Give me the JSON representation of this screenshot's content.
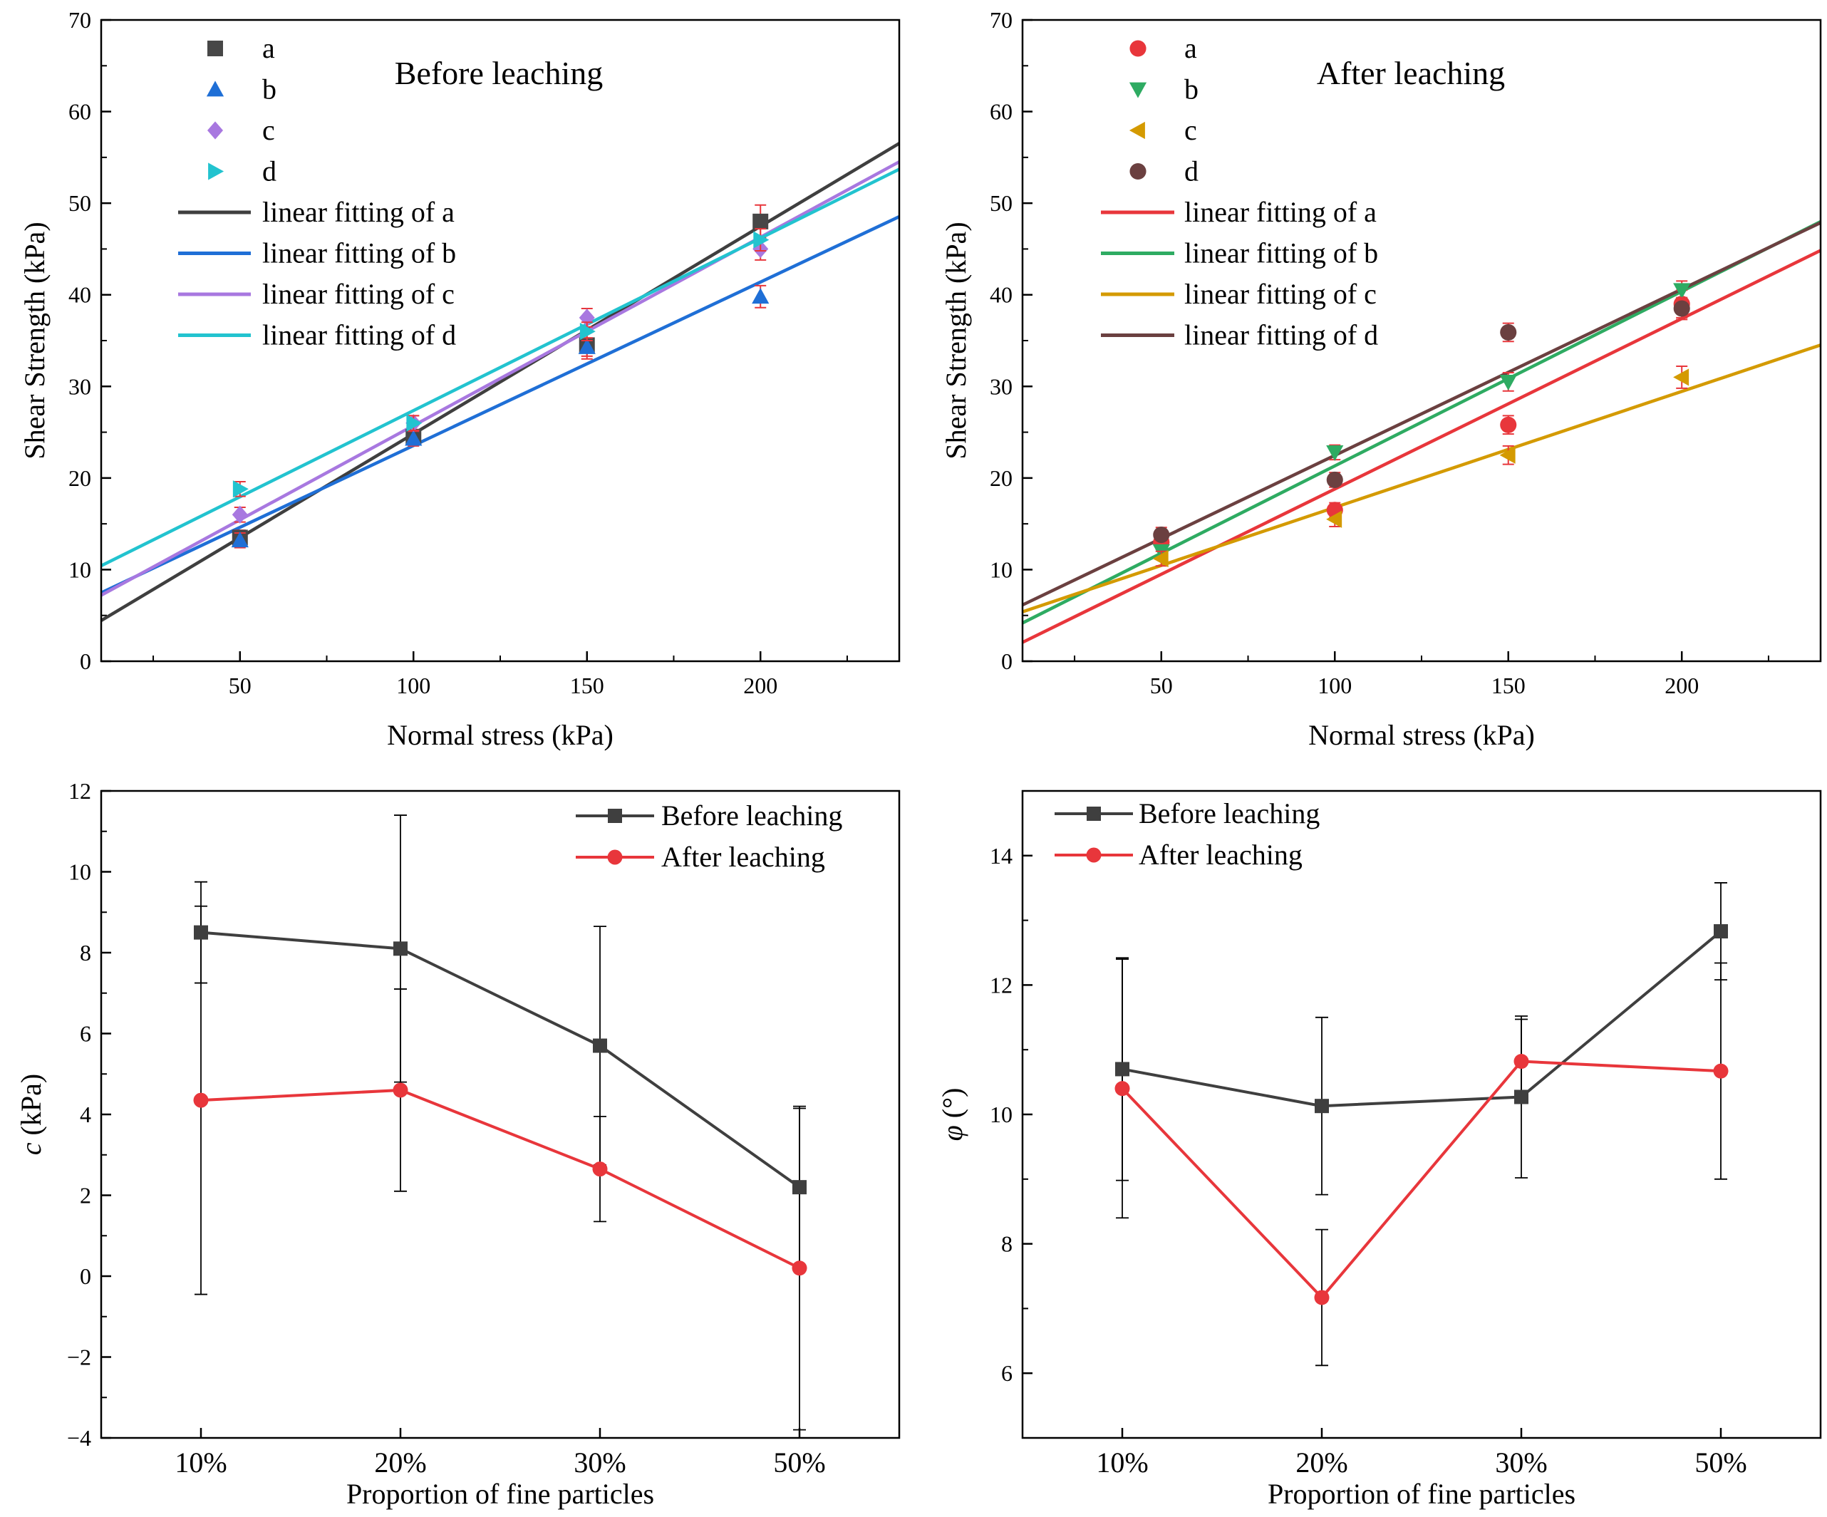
{
  "figure": {
    "description": "Shear strength test results before and after leaching"
  },
  "chart_data": [
    {
      "id": "panel-a",
      "type": "scatter",
      "title": "Before leaching",
      "xlabel": "Normal stress (kPa)",
      "ylabel": "Shear Strength (kPa)",
      "xlim": [
        10,
        240
      ],
      "ylim": [
        0,
        70
      ],
      "xticks": [
        50,
        100,
        150,
        200
      ],
      "yticks": [
        0,
        10,
        20,
        30,
        40,
        50,
        60,
        70
      ],
      "legend_position": "top-left",
      "series": [
        {
          "name": "a",
          "marker": "square",
          "color": "#474747",
          "x": [
            50,
            100,
            150,
            200
          ],
          "y": [
            13.5,
            24.5,
            34.5,
            48.0
          ],
          "err": [
            0.8,
            0.8,
            1.5,
            1.8
          ]
        },
        {
          "name": "b",
          "marker": "triangle-up",
          "color": "#1f6fd6",
          "x": [
            50,
            100,
            150,
            200
          ],
          "y": [
            13.2,
            24.3,
            34.3,
            39.8
          ],
          "err": [
            0.8,
            0.8,
            1.0,
            1.2
          ]
        },
        {
          "name": "c",
          "marker": "diamond",
          "color": "#a878e0",
          "x": [
            50,
            100,
            150,
            200
          ],
          "y": [
            16.0,
            26.0,
            37.5,
            45.0
          ],
          "err": [
            0.8,
            0.8,
            1.0,
            1.2
          ]
        },
        {
          "name": "d",
          "marker": "triangle-right",
          "color": "#22c3cf",
          "x": [
            50,
            100,
            150,
            200
          ],
          "y": [
            18.8,
            26.0,
            36.0,
            46.0
          ],
          "err": [
            0.8,
            0.8,
            1.0,
            1.2
          ]
        }
      ],
      "fits": [
        {
          "name": "linear fitting of a",
          "color": "#3f3f3f",
          "intercept": 2.17,
          "slope": 0.2265
        },
        {
          "name": "linear fitting of b",
          "color": "#1f6fd6",
          "intercept": 5.69,
          "slope": 0.1785
        },
        {
          "name": "linear fitting of c",
          "color": "#a878e0",
          "intercept": 5.15,
          "slope": 0.2057
        },
        {
          "name": "linear fitting of d",
          "color": "#22c3cf",
          "intercept": 8.54,
          "slope": 0.1882
        }
      ]
    },
    {
      "id": "panel-b",
      "type": "scatter",
      "title": "After leaching",
      "xlabel": "Normal stress (kPa)",
      "ylabel": "Shear Strength (kPa)",
      "xlim": [
        10,
        240
      ],
      "ylim": [
        0,
        70
      ],
      "xticks": [
        50,
        100,
        150,
        200
      ],
      "yticks": [
        0,
        10,
        20,
        30,
        40,
        50,
        60,
        70
      ],
      "legend_position": "top-left",
      "series": [
        {
          "name": "a",
          "marker": "circle",
          "color": "#e8363b",
          "x": [
            50,
            100,
            150,
            200
          ],
          "y": [
            13.0,
            16.5,
            25.8,
            39.0
          ],
          "err": [
            0.8,
            0.8,
            1.0,
            1.5
          ]
        },
        {
          "name": "b",
          "marker": "triangle-down",
          "color": "#2eab62",
          "x": [
            50,
            100,
            150,
            200
          ],
          "y": [
            12.0,
            22.8,
            30.5,
            40.5
          ],
          "err": [
            0.8,
            0.8,
            1.0,
            1.0
          ]
        },
        {
          "name": "c",
          "marker": "triangle-left",
          "color": "#d49a00",
          "x": [
            50,
            100,
            150,
            200
          ],
          "y": [
            11.2,
            15.5,
            22.5,
            31.0
          ],
          "err": [
            0.8,
            0.8,
            1.0,
            1.2
          ]
        },
        {
          "name": "d",
          "marker": "circle",
          "color": "#6b4040",
          "x": [
            50,
            100,
            150,
            200
          ],
          "y": [
            13.8,
            19.8,
            35.9,
            38.5
          ],
          "err": [
            0.8,
            0.8,
            1.0,
            1.2
          ]
        }
      ],
      "fits": [
        {
          "name": "linear fitting of a",
          "color": "#e8363b",
          "intercept": 0.2,
          "slope": 0.186
        },
        {
          "name": "linear fitting of b",
          "color": "#2eab62",
          "intercept": 2.27,
          "slope": 0.1905
        },
        {
          "name": "linear fitting of c",
          "color": "#d49a00",
          "intercept": 4.13,
          "slope": 0.1266
        },
        {
          "name": "linear fitting of d",
          "color": "#6b4040",
          "intercept": 4.33,
          "slope": 0.1814
        }
      ]
    },
    {
      "id": "panel-c",
      "type": "line",
      "xlabel": "Proportion of fine particles",
      "ylabel_italic": "c",
      "ylabel_rest": " (kPa)",
      "categories": [
        "10%",
        "20%",
        "30%",
        "50%"
      ],
      "ylim": [
        -4,
        12
      ],
      "yticks": [
        -4,
        -2,
        0,
        2,
        4,
        6,
        8,
        10,
        12
      ],
      "legend_position": "top-right",
      "series": [
        {
          "name": "Before leaching",
          "marker": "square",
          "color": "#3f3f3f",
          "values": [
            8.5,
            8.1,
            5.7,
            2.2
          ],
          "err": [
            1.25,
            3.3,
            2.95,
            1.95
          ]
        },
        {
          "name": "After leaching",
          "marker": "circle",
          "color": "#e8363b",
          "values": [
            4.35,
            4.6,
            2.65,
            0.2
          ],
          "err": [
            4.8,
            2.5,
            1.3,
            4.0
          ]
        }
      ]
    },
    {
      "id": "panel-d",
      "type": "line",
      "xlabel": "Proportion of fine particles",
      "ylabel_italic": "φ",
      "ylabel_rest": " (°)",
      "categories": [
        "10%",
        "20%",
        "30%",
        "50%"
      ],
      "ylim": [
        5,
        15
      ],
      "yticks": [
        6,
        8,
        10,
        12,
        14
      ],
      "legend_position": "top-left",
      "series": [
        {
          "name": "Before leaching",
          "marker": "square",
          "color": "#3f3f3f",
          "values": [
            10.7,
            10.13,
            10.27,
            12.83
          ],
          "err": [
            1.72,
            1.37,
            1.25,
            0.75
          ]
        },
        {
          "name": "After leaching",
          "marker": "circle",
          "color": "#e8363b",
          "values": [
            10.4,
            7.17,
            10.82,
            10.67
          ],
          "err": [
            2.0,
            1.05,
            0.65,
            1.67
          ]
        }
      ]
    }
  ]
}
